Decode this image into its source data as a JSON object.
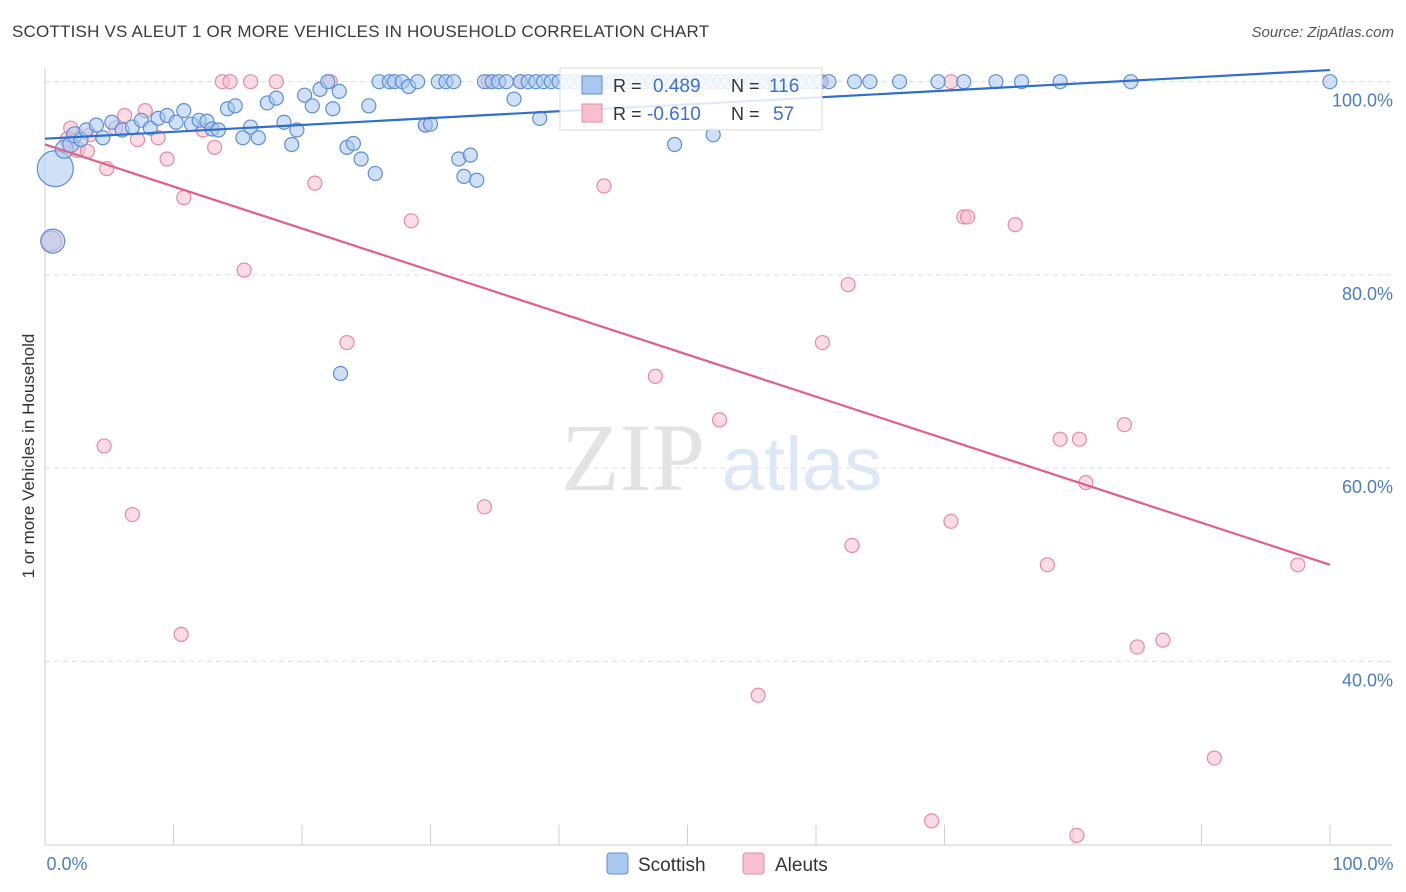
{
  "title": "SCOTTISH VS ALEUT 1 OR MORE VEHICLES IN HOUSEHOLD CORRELATION CHART",
  "source": "Source: ZipAtlas.com",
  "watermark": {
    "zip": "ZIP",
    "atlas": "atlas"
  },
  "colors": {
    "scottish_fill": "#a9c8f0",
    "scottish_stroke": "#5b8fd6",
    "scottish_line": "#2f6fcc",
    "aleut_fill": "#f7c0d0",
    "aleut_stroke": "#e58aa6",
    "aleut_line": "#e0608a",
    "axis_text": "#4a7cc9",
    "grid": "#dddddd"
  },
  "legend_box": {
    "rows": [
      {
        "r_label": "R =",
        "r_value": "0.489",
        "n_label": "N =",
        "n_value": "116",
        "series": "scottish"
      },
      {
        "r_label": "R =",
        "r_value": "-0.610",
        "n_label": "N =",
        "n_value": "57",
        "series": "aleut"
      }
    ]
  },
  "bottom_legend": [
    {
      "label": "Scottish",
      "series": "scottish"
    },
    {
      "label": "Aleuts",
      "series": "aleut"
    }
  ],
  "chart_data": {
    "type": "scatter",
    "xlabel": "",
    "ylabel": "1 or more Vehicles in Household",
    "xlim": [
      0,
      100
    ],
    "ylim": [
      21,
      101
    ],
    "x_ticks": [
      {
        "value": 0,
        "label": "0.0%"
      },
      {
        "value": 100,
        "label": "100.0%"
      }
    ],
    "y_ticks": [
      {
        "value": 40,
        "label": "40.0%"
      },
      {
        "value": 60,
        "label": "60.0%"
      },
      {
        "value": 80,
        "label": "80.0%"
      },
      {
        "value": 100,
        "label": "100.0%"
      }
    ],
    "x_minor_ticks": [
      10,
      20,
      30,
      40,
      50,
      60,
      70,
      80,
      90,
      100
    ],
    "grid": true,
    "series": [
      {
        "name": "Scottish",
        "key": "scottish",
        "trend": {
          "x": [
            0,
            100
          ],
          "y": [
            94.1,
            101.2
          ]
        },
        "points": [
          [
            0.8,
            91.0,
            18
          ],
          [
            0.6,
            83.5,
            12
          ],
          [
            1.5,
            93.0,
            9
          ],
          [
            2.0,
            93.5,
            8
          ],
          [
            2.3,
            94.5,
            8
          ],
          [
            2.8,
            94.0,
            7
          ],
          [
            3.2,
            95.0,
            7
          ],
          [
            4.0,
            95.5,
            7
          ],
          [
            4.5,
            94.2,
            7
          ],
          [
            5.2,
            95.8,
            7
          ],
          [
            6.0,
            95.0,
            7
          ],
          [
            6.8,
            95.3,
            7
          ],
          [
            7.5,
            96.0,
            7
          ],
          [
            8.2,
            95.2,
            7
          ],
          [
            8.8,
            96.2,
            7
          ],
          [
            9.5,
            96.5,
            7
          ],
          [
            10.2,
            95.8,
            7
          ],
          [
            10.8,
            97.0,
            7
          ],
          [
            11.4,
            95.6,
            7
          ],
          [
            12.0,
            96.0,
            7
          ],
          [
            12.6,
            95.9,
            7
          ],
          [
            13.0,
            95.1,
            7
          ],
          [
            13.5,
            95.0,
            7
          ],
          [
            14.2,
            97.2,
            7
          ],
          [
            14.8,
            97.5,
            7
          ],
          [
            15.4,
            94.2,
            7
          ],
          [
            16.0,
            95.3,
            7
          ],
          [
            16.6,
            94.2,
            7
          ],
          [
            17.3,
            97.8,
            7
          ],
          [
            18.0,
            98.3,
            7
          ],
          [
            18.6,
            95.8,
            7
          ],
          [
            19.2,
            93.5,
            7
          ],
          [
            19.6,
            95.0,
            7
          ],
          [
            20.2,
            98.6,
            7
          ],
          [
            20.8,
            97.5,
            7
          ],
          [
            21.4,
            99.2,
            7
          ],
          [
            22.0,
            100.0,
            7
          ],
          [
            22.4,
            97.2,
            7
          ],
          [
            22.9,
            99.0,
            7
          ],
          [
            23.5,
            93.2,
            7
          ],
          [
            24.0,
            93.6,
            7
          ],
          [
            24.6,
            92.0,
            7
          ],
          [
            25.2,
            97.5,
            7
          ],
          [
            25.7,
            90.5,
            7
          ],
          [
            26.0,
            100.0,
            7
          ],
          [
            26.8,
            100.0,
            7
          ],
          [
            27.2,
            100.0,
            7
          ],
          [
            27.8,
            100.0,
            7
          ],
          [
            28.3,
            99.5,
            7
          ],
          [
            29.0,
            100.0,
            7
          ],
          [
            29.6,
            95.5,
            7
          ],
          [
            30.0,
            95.6,
            7
          ],
          [
            30.6,
            100.0,
            7
          ],
          [
            31.2,
            100.0,
            7
          ],
          [
            31.8,
            100.0,
            7
          ],
          [
            32.2,
            92.0,
            7
          ],
          [
            32.6,
            90.2,
            7
          ],
          [
            33.1,
            92.4,
            7
          ],
          [
            33.6,
            89.8,
            7
          ],
          [
            34.2,
            100.0,
            7
          ],
          [
            34.8,
            100.0,
            7
          ],
          [
            35.3,
            100.0,
            7
          ],
          [
            35.9,
            100.0,
            7
          ],
          [
            36.5,
            98.2,
            7
          ],
          [
            37.0,
            100.0,
            7
          ],
          [
            37.6,
            100.0,
            7
          ],
          [
            38.2,
            100.0,
            7
          ],
          [
            38.8,
            100.0,
            7
          ],
          [
            39.4,
            100.0,
            7
          ],
          [
            40.0,
            100.0,
            7
          ],
          [
            40.6,
            100.0,
            7
          ],
          [
            41.2,
            100.0,
            7
          ],
          [
            41.8,
            100.0,
            7
          ],
          [
            42.4,
            100.0,
            7
          ],
          [
            43.0,
            100.0,
            7
          ],
          [
            43.6,
            100.0,
            7
          ],
          [
            44.2,
            100.0,
            7
          ],
          [
            44.8,
            100.0,
            7
          ],
          [
            45.4,
            100.0,
            7
          ],
          [
            46.0,
            100.0,
            7
          ],
          [
            46.6,
            100.0,
            7
          ],
          [
            47.2,
            100.0,
            7
          ],
          [
            47.8,
            100.0,
            7
          ],
          [
            48.4,
            100.0,
            7
          ],
          [
            49.0,
            100.0,
            7
          ],
          [
            49.6,
            100.0,
            7
          ],
          [
            50.2,
            100.0,
            7
          ],
          [
            50.8,
            100.0,
            7
          ],
          [
            51.4,
            100.0,
            7
          ],
          [
            52.0,
            100.0,
            7
          ],
          [
            52.6,
            100.0,
            7
          ],
          [
            53.2,
            100.0,
            7
          ],
          [
            53.8,
            100.0,
            7
          ],
          [
            54.4,
            100.0,
            7
          ],
          [
            55.0,
            100.0,
            7
          ],
          [
            55.6,
            100.0,
            7
          ],
          [
            56.2,
            100.0,
            7
          ],
          [
            56.8,
            100.0,
            7
          ],
          [
            57.4,
            100.0,
            7
          ],
          [
            58.0,
            100.0,
            7
          ],
          [
            58.6,
            100.0,
            7
          ],
          [
            59.2,
            100.0,
            7
          ],
          [
            59.8,
            100.0,
            7
          ],
          [
            60.4,
            100.0,
            7
          ],
          [
            61.0,
            100.0,
            7
          ],
          [
            38.5,
            96.2,
            7
          ],
          [
            49.0,
            93.5,
            7
          ],
          [
            52.0,
            94.5,
            7
          ],
          [
            57.0,
            100.0,
            7
          ],
          [
            63.0,
            100.0,
            7
          ],
          [
            64.2,
            100.0,
            7
          ],
          [
            66.5,
            100.0,
            7
          ],
          [
            69.5,
            100.0,
            7
          ],
          [
            71.5,
            100.0,
            7
          ],
          [
            74.0,
            100.0,
            7
          ],
          [
            76.0,
            100.0,
            7
          ],
          [
            79.0,
            100.0,
            7
          ],
          [
            84.5,
            100.0,
            7
          ],
          [
            100.0,
            100.0,
            7
          ],
          [
            23.0,
            69.8,
            7
          ]
        ]
      },
      {
        "name": "Aleuts",
        "key": "aleut",
        "trend": {
          "x": [
            0,
            100
          ],
          "y": [
            93.5,
            50.0
          ]
        },
        "points": [
          [
            0.5,
            83.5,
            10
          ],
          [
            1.8,
            94.0,
            8
          ],
          [
            2.5,
            93.0,
            8
          ],
          [
            3.5,
            94.5,
            7
          ],
          [
            4.8,
            91.0,
            7
          ],
          [
            5.5,
            95.2,
            7
          ],
          [
            6.2,
            96.5,
            7
          ],
          [
            7.2,
            94.0,
            7
          ],
          [
            7.8,
            97.0,
            7
          ],
          [
            8.8,
            94.2,
            7
          ],
          [
            9.5,
            92.0,
            7
          ],
          [
            10.8,
            88.0,
            7
          ],
          [
            13.2,
            93.2,
            7
          ],
          [
            13.8,
            100.0,
            7
          ],
          [
            14.4,
            100.0,
            7
          ],
          [
            15.5,
            80.5,
            7
          ],
          [
            18.0,
            100.0,
            7
          ],
          [
            21.0,
            89.5,
            7
          ],
          [
            22.2,
            100.0,
            7
          ],
          [
            23.5,
            73.0,
            7
          ],
          [
            28.5,
            85.6,
            7
          ],
          [
            29.6,
            95.5,
            7
          ],
          [
            34.5,
            100.0,
            7
          ],
          [
            34.2,
            56.0,
            7
          ],
          [
            37.0,
            100.0,
            7
          ],
          [
            43.5,
            89.2,
            7
          ],
          [
            47.5,
            69.5,
            7
          ],
          [
            52.5,
            65.0,
            7
          ],
          [
            55.5,
            36.5,
            7
          ],
          [
            60.2,
            100.0,
            7
          ],
          [
            60.5,
            73.0,
            7
          ],
          [
            62.5,
            79.0,
            7
          ],
          [
            62.8,
            52.0,
            7
          ],
          [
            69.0,
            23.5,
            7
          ],
          [
            70.5,
            100.0,
            7
          ],
          [
            71.5,
            86.0,
            7
          ],
          [
            71.8,
            86.0,
            7
          ],
          [
            70.5,
            54.5,
            7
          ],
          [
            75.5,
            85.2,
            7
          ],
          [
            78.0,
            50.0,
            7
          ],
          [
            79.0,
            63.0,
            7
          ],
          [
            80.5,
            63.0,
            7
          ],
          [
            81.0,
            58.5,
            7
          ],
          [
            84.0,
            64.5,
            7
          ],
          [
            85.0,
            41.5,
            7
          ],
          [
            87.0,
            42.2,
            7
          ],
          [
            91.0,
            30.0,
            7
          ],
          [
            97.5,
            50.0,
            7
          ],
          [
            80.3,
            22.0,
            7
          ],
          [
            4.6,
            62.3,
            7
          ],
          [
            6.8,
            55.2,
            7
          ],
          [
            10.6,
            42.8,
            7
          ],
          [
            2.0,
            95.2,
            7
          ],
          [
            3.3,
            92.8,
            7
          ],
          [
            16.0,
            100.0,
            7
          ],
          [
            12.3,
            95.0,
            7
          ],
          [
            44.5,
            100.0,
            7
          ]
        ]
      }
    ]
  }
}
